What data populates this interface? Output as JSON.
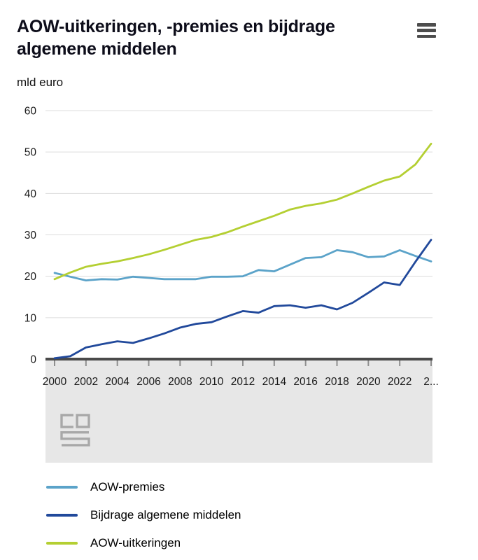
{
  "header": {
    "title": "AOW-uitkeringen, -premies en bijdrage algemene middelen"
  },
  "icons": {
    "menu": "hamburger-icon",
    "logo": "cbs-logo"
  },
  "chart": {
    "unit_label": "mld euro"
  },
  "chart_data": {
    "type": "line",
    "title": "AOW-uitkeringen, -premies en bijdrage algemene middelen",
    "ylabel": "mld euro",
    "xlabel": "",
    "x": [
      2000,
      2001,
      2002,
      2003,
      2004,
      2005,
      2006,
      2007,
      2008,
      2009,
      2010,
      2011,
      2012,
      2013,
      2014,
      2015,
      2016,
      2017,
      2018,
      2019,
      2020,
      2021,
      2022,
      2023,
      2024
    ],
    "x_tick_labels": [
      "2000",
      "2002",
      "2004",
      "2006",
      "2008",
      "2010",
      "2012",
      "2014",
      "2016",
      "2018",
      "2020",
      "2022",
      "2..."
    ],
    "ylim": [
      0,
      60
    ],
    "y_ticks": [
      0,
      10,
      20,
      30,
      40,
      50,
      60
    ],
    "grid": true,
    "legend_position": "bottom",
    "series": [
      {
        "name": "AOW-premies",
        "color": "#5ba3c9",
        "values": [
          20.8,
          19.9,
          19.0,
          19.3,
          19.2,
          19.9,
          19.6,
          19.3,
          19.3,
          19.3,
          19.9,
          19.9,
          20.0,
          21.5,
          21.2,
          22.8,
          24.4,
          24.6,
          26.3,
          25.8,
          24.6,
          24.8,
          26.3,
          24.9,
          23.6
        ]
      },
      {
        "name": "Bijdrage algemene middelen",
        "color": "#21499b",
        "values": [
          0.2,
          0.7,
          2.8,
          3.6,
          4.3,
          3.9,
          5.0,
          6.2,
          7.6,
          8.5,
          8.9,
          10.3,
          11.6,
          11.2,
          12.8,
          13.0,
          12.4,
          13.0,
          12.0,
          13.6,
          16.0,
          18.5,
          17.9,
          23.5,
          28.8
        ]
      },
      {
        "name": "AOW-uitkeringen",
        "color": "#b4cf32",
        "values": [
          19.3,
          20.9,
          22.3,
          23.0,
          23.6,
          24.4,
          25.3,
          26.4,
          27.6,
          28.8,
          29.5,
          30.6,
          32.0,
          33.3,
          34.6,
          36.1,
          37.0,
          37.6,
          38.5,
          40.0,
          41.6,
          43.1,
          44.1,
          47.0,
          52.0
        ]
      }
    ],
    "style": {
      "grid_color": "#dcdcdc",
      "axis_color": "#4a4a4a",
      "tick_color": "#8f8f8f",
      "label_color": "#1a1a1a",
      "below_axis_bg": "#e7e7e7",
      "logo_color": "#a8a8a8"
    }
  }
}
